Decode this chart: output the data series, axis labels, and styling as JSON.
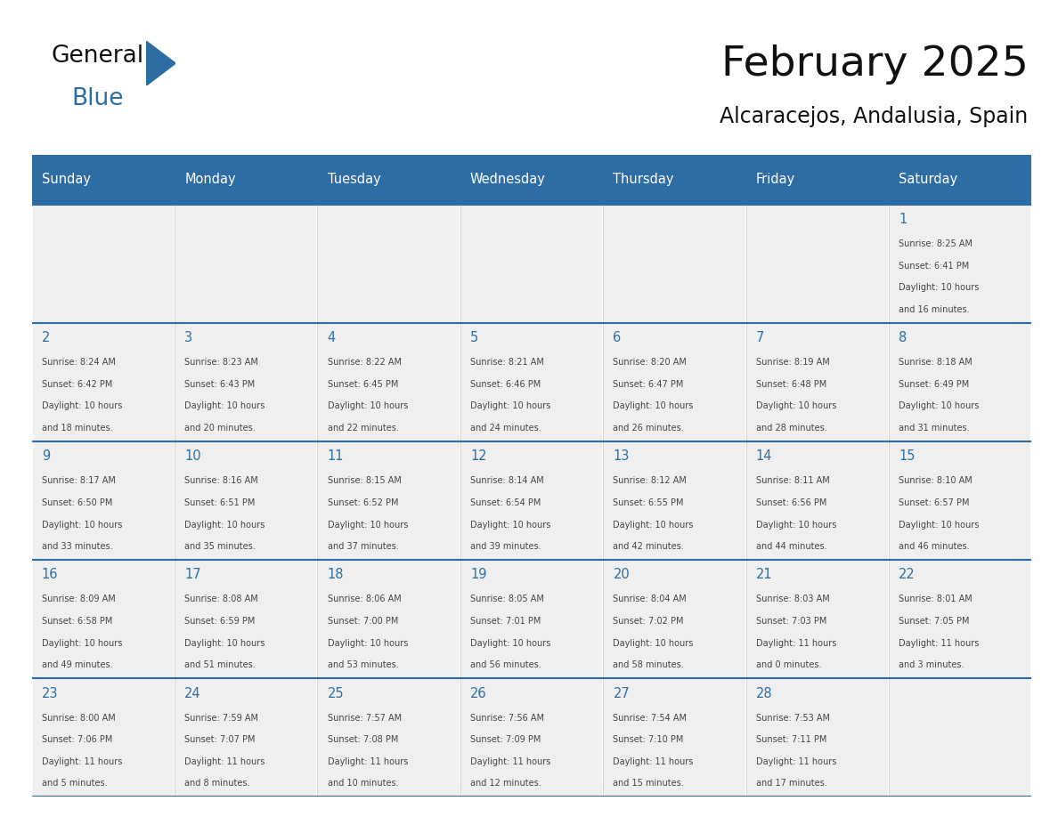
{
  "title": "February 2025",
  "subtitle": "Alcaracejos, Andalusia, Spain",
  "days_of_week": [
    "Sunday",
    "Monday",
    "Tuesday",
    "Wednesday",
    "Thursday",
    "Friday",
    "Saturday"
  ],
  "header_bg": "#2E6DA4",
  "header_text": "#FFFFFF",
  "cell_bg": "#EFEFEF",
  "border_color": "#2E6DA4",
  "day_number_color": "#2E6DA4",
  "text_color": "#444444",
  "title_color": "#111111",
  "logo_text_color": "#111111",
  "logo_blue_color": "#2E6DA4",
  "weeks": [
    [
      {
        "day": null,
        "info": ""
      },
      {
        "day": null,
        "info": ""
      },
      {
        "day": null,
        "info": ""
      },
      {
        "day": null,
        "info": ""
      },
      {
        "day": null,
        "info": ""
      },
      {
        "day": null,
        "info": ""
      },
      {
        "day": 1,
        "info": "Sunrise: 8:25 AM\nSunset: 6:41 PM\nDaylight: 10 hours\nand 16 minutes."
      }
    ],
    [
      {
        "day": 2,
        "info": "Sunrise: 8:24 AM\nSunset: 6:42 PM\nDaylight: 10 hours\nand 18 minutes."
      },
      {
        "day": 3,
        "info": "Sunrise: 8:23 AM\nSunset: 6:43 PM\nDaylight: 10 hours\nand 20 minutes."
      },
      {
        "day": 4,
        "info": "Sunrise: 8:22 AM\nSunset: 6:45 PM\nDaylight: 10 hours\nand 22 minutes."
      },
      {
        "day": 5,
        "info": "Sunrise: 8:21 AM\nSunset: 6:46 PM\nDaylight: 10 hours\nand 24 minutes."
      },
      {
        "day": 6,
        "info": "Sunrise: 8:20 AM\nSunset: 6:47 PM\nDaylight: 10 hours\nand 26 minutes."
      },
      {
        "day": 7,
        "info": "Sunrise: 8:19 AM\nSunset: 6:48 PM\nDaylight: 10 hours\nand 28 minutes."
      },
      {
        "day": 8,
        "info": "Sunrise: 8:18 AM\nSunset: 6:49 PM\nDaylight: 10 hours\nand 31 minutes."
      }
    ],
    [
      {
        "day": 9,
        "info": "Sunrise: 8:17 AM\nSunset: 6:50 PM\nDaylight: 10 hours\nand 33 minutes."
      },
      {
        "day": 10,
        "info": "Sunrise: 8:16 AM\nSunset: 6:51 PM\nDaylight: 10 hours\nand 35 minutes."
      },
      {
        "day": 11,
        "info": "Sunrise: 8:15 AM\nSunset: 6:52 PM\nDaylight: 10 hours\nand 37 minutes."
      },
      {
        "day": 12,
        "info": "Sunrise: 8:14 AM\nSunset: 6:54 PM\nDaylight: 10 hours\nand 39 minutes."
      },
      {
        "day": 13,
        "info": "Sunrise: 8:12 AM\nSunset: 6:55 PM\nDaylight: 10 hours\nand 42 minutes."
      },
      {
        "day": 14,
        "info": "Sunrise: 8:11 AM\nSunset: 6:56 PM\nDaylight: 10 hours\nand 44 minutes."
      },
      {
        "day": 15,
        "info": "Sunrise: 8:10 AM\nSunset: 6:57 PM\nDaylight: 10 hours\nand 46 minutes."
      }
    ],
    [
      {
        "day": 16,
        "info": "Sunrise: 8:09 AM\nSunset: 6:58 PM\nDaylight: 10 hours\nand 49 minutes."
      },
      {
        "day": 17,
        "info": "Sunrise: 8:08 AM\nSunset: 6:59 PM\nDaylight: 10 hours\nand 51 minutes."
      },
      {
        "day": 18,
        "info": "Sunrise: 8:06 AM\nSunset: 7:00 PM\nDaylight: 10 hours\nand 53 minutes."
      },
      {
        "day": 19,
        "info": "Sunrise: 8:05 AM\nSunset: 7:01 PM\nDaylight: 10 hours\nand 56 minutes."
      },
      {
        "day": 20,
        "info": "Sunrise: 8:04 AM\nSunset: 7:02 PM\nDaylight: 10 hours\nand 58 minutes."
      },
      {
        "day": 21,
        "info": "Sunrise: 8:03 AM\nSunset: 7:03 PM\nDaylight: 11 hours\nand 0 minutes."
      },
      {
        "day": 22,
        "info": "Sunrise: 8:01 AM\nSunset: 7:05 PM\nDaylight: 11 hours\nand 3 minutes."
      }
    ],
    [
      {
        "day": 23,
        "info": "Sunrise: 8:00 AM\nSunset: 7:06 PM\nDaylight: 11 hours\nand 5 minutes."
      },
      {
        "day": 24,
        "info": "Sunrise: 7:59 AM\nSunset: 7:07 PM\nDaylight: 11 hours\nand 8 minutes."
      },
      {
        "day": 25,
        "info": "Sunrise: 7:57 AM\nSunset: 7:08 PM\nDaylight: 11 hours\nand 10 minutes."
      },
      {
        "day": 26,
        "info": "Sunrise: 7:56 AM\nSunset: 7:09 PM\nDaylight: 11 hours\nand 12 minutes."
      },
      {
        "day": 27,
        "info": "Sunrise: 7:54 AM\nSunset: 7:10 PM\nDaylight: 11 hours\nand 15 minutes."
      },
      {
        "day": 28,
        "info": "Sunrise: 7:53 AM\nSunset: 7:11 PM\nDaylight: 11 hours\nand 17 minutes."
      },
      {
        "day": null,
        "info": ""
      }
    ]
  ],
  "figsize": [
    11.88,
    9.18
  ],
  "dpi": 100
}
